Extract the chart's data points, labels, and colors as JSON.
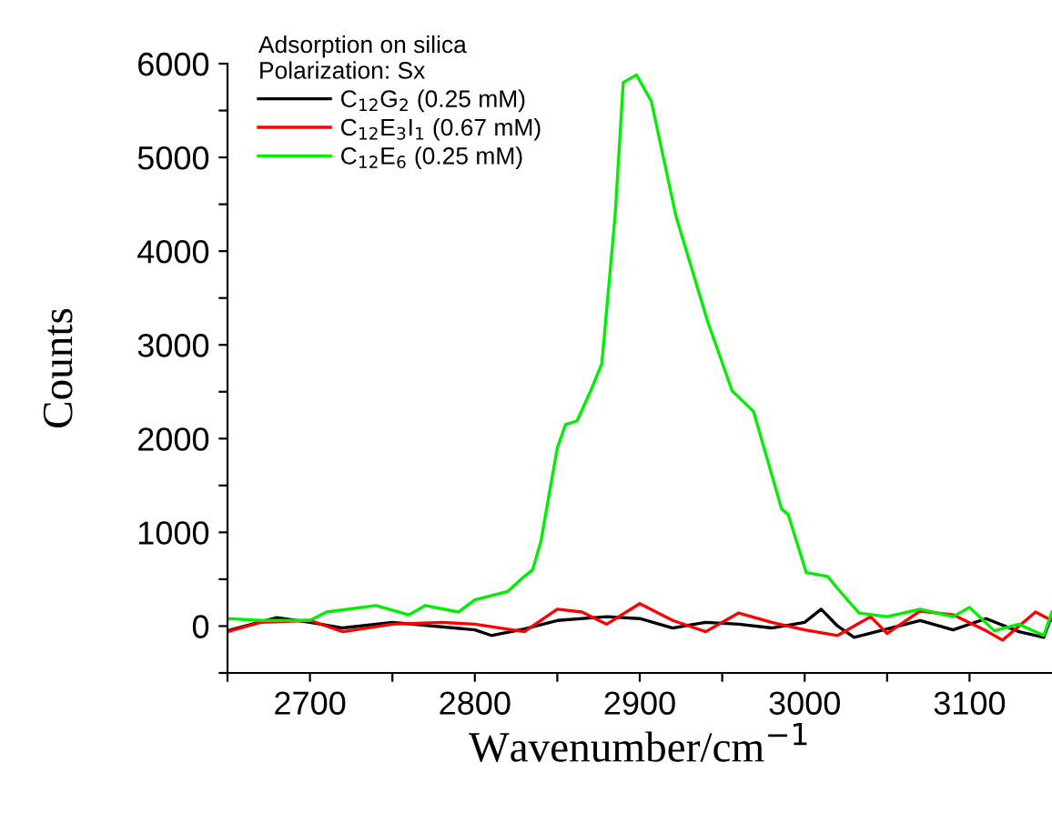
{
  "chart_data": {
    "type": "line",
    "xlabel": "Wavenumber/cm$^{−1}$",
    "ylabel": "Counts",
    "legend_title": "Adsorption on silica\nPolarization: Sx",
    "legend": "top left",
    "grid": false,
    "xlim": [
      2650,
      3150
    ],
    "ylim": [
      -500,
      6000
    ],
    "xticks": [
      {
        "value": 2650,
        "label": null
      },
      2700,
      {
        "value": 2750,
        "label": null
      },
      2800,
      {
        "value": 2850,
        "label": null
      },
      2900,
      {
        "value": 2950,
        "label": null
      },
      3000,
      {
        "value": 3050,
        "label": null
      },
      3100
    ],
    "yticks": [
      {
        "value": -500,
        "label": null
      },
      0,
      {
        "value": 500,
        "label": null
      },
      1000,
      {
        "value": 1500,
        "label": null
      },
      2000,
      {
        "value": 2500,
        "label": null
      },
      3000,
      {
        "value": 3500,
        "label": null
      },
      4000,
      {
        "value": 4500,
        "label": null
      },
      5000,
      {
        "value": 5500,
        "label": null
      },
      6000
    ],
    "series": [
      {
        "name": "C$_{12}$G$_{2}$ (0.25 mM)",
        "color": "#000000",
        "x": [
          2650,
          2680,
          2700,
          2720,
          2750,
          2800,
          2810,
          2830,
          2850,
          2880,
          2900,
          2920,
          2940,
          2960,
          2980,
          3000,
          3010,
          3020,
          3030,
          3050,
          3070,
          3090,
          3110,
          3130,
          3145,
          3150
        ],
        "values": [
          -50,
          90,
          40,
          -20,
          40,
          -40,
          -100,
          -30,
          60,
          100,
          80,
          -20,
          40,
          20,
          -20,
          40,
          180,
          0,
          -120,
          -30,
          60,
          -40,
          80,
          -60,
          -120,
          120
        ]
      },
      {
        "name": "C$_{12}$E$_{3}$I$_{1}$ (0.67 mM)",
        "color": "#ff0000",
        "x": [
          2650,
          2670,
          2700,
          2720,
          2750,
          2780,
          2800,
          2830,
          2850,
          2865,
          2880,
          2900,
          2920,
          2940,
          2960,
          2980,
          3000,
          3020,
          3040,
          3050,
          3070,
          3090,
          3110,
          3120,
          3140,
          3150
        ],
        "values": [
          -60,
          40,
          60,
          -60,
          20,
          40,
          20,
          -60,
          180,
          150,
          20,
          240,
          60,
          -60,
          140,
          40,
          -40,
          -100,
          100,
          -80,
          160,
          120,
          -50,
          -150,
          150,
          60
        ]
      },
      {
        "name": "C$_{12}$E$_{6}$ (0.25 mM)",
        "color": "#00ee00",
        "x": [
          2650,
          2670,
          2700,
          2710,
          2740,
          2760,
          2770,
          2790,
          2800,
          2820,
          2830,
          2835,
          2840,
          2850,
          2855,
          2862,
          2870,
          2877,
          2885,
          2890,
          2898,
          2907,
          2922,
          2941,
          2956,
          2969,
          2986,
          2990,
          3001,
          3014,
          3020,
          3033,
          3050,
          3070,
          3090,
          3100,
          3115,
          3130,
          3145,
          3150
        ],
        "values": [
          80,
          60,
          60,
          150,
          220,
          120,
          220,
          150,
          280,
          370,
          530,
          600,
          900,
          1900,
          2150,
          2190,
          2500,
          2800,
          4370,
          5800,
          5880,
          5600,
          4370,
          3260,
          2510,
          2290,
          1250,
          1190,
          570,
          530,
          400,
          140,
          100,
          180,
          100,
          200,
          -50,
          20,
          -100,
          150
        ]
      }
    ]
  }
}
